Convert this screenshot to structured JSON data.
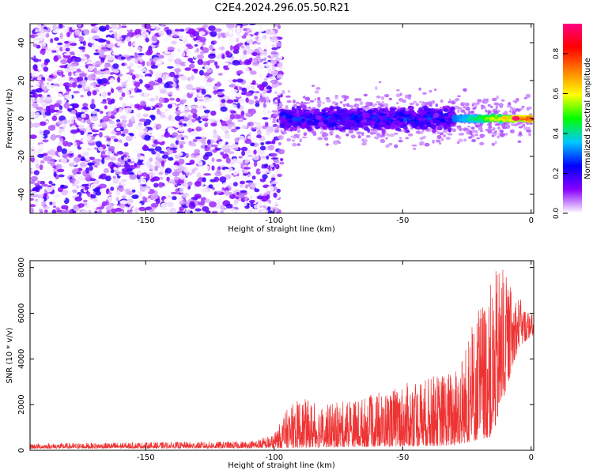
{
  "title": "C2E4.2024.296.05.50.R21",
  "chart_data": [
    {
      "type": "heatmap",
      "xlabel": "Height of straight line (km)",
      "ylabel": "Frequency (Hz)",
      "xlim": [
        -195,
        1
      ],
      "ylim": [
        -50,
        50
      ],
      "xticks": [
        -150,
        -100,
        -50,
        0
      ],
      "yticks": [
        -40,
        -20,
        0,
        20,
        40
      ],
      "colorbar": {
        "label": "Normalized spectral amplitude",
        "range": [
          0,
          0.95
        ],
        "ticks": [
          0.0,
          0.2,
          0.4,
          0.6,
          0.8
        ],
        "colors": [
          "#ffffff",
          "#8a00ff",
          "#0000ff",
          "#00c8ff",
          "#00ff00",
          "#ffff00",
          "#ff8000",
          "#ff0000",
          "#ff0080"
        ]
      },
      "regions": [
        {
          "x_range": [
            -195,
            -97
          ],
          "freq_range": [
            -50,
            50
          ],
          "amplitude": [
            0.0,
            0.15
          ]
        },
        {
          "x_range": [
            -97,
            -30
          ],
          "freq_range": [
            -10,
            10
          ],
          "amplitude": [
            0.1,
            0.3
          ]
        },
        {
          "x_range": [
            -30,
            0
          ],
          "freq_range": [
            -4,
            4
          ],
          "amplitude": [
            0.3,
            0.95
          ]
        }
      ],
      "peak": {
        "x": -6,
        "freq": 0,
        "amplitude": 0.95
      }
    },
    {
      "type": "line",
      "xlabel": "Height of straight line (km)",
      "ylabel": "SNR (10 * v/v)",
      "xlim": [
        -195,
        1
      ],
      "ylim": [
        0,
        8300
      ],
      "xticks": [
        -150,
        -100,
        -50,
        0
      ],
      "yticks": [
        0,
        2000,
        4000,
        6000,
        8000
      ],
      "color": "#ee3333",
      "envelope": [
        {
          "x": -195,
          "y": 300
        },
        {
          "x": -110,
          "y": 400
        },
        {
          "x": -100,
          "y": 700
        },
        {
          "x": -95,
          "y": 1800
        },
        {
          "x": -90,
          "y": 2300
        },
        {
          "x": -80,
          "y": 2000
        },
        {
          "x": -70,
          "y": 2200
        },
        {
          "x": -60,
          "y": 2500
        },
        {
          "x": -50,
          "y": 2900
        },
        {
          "x": -40,
          "y": 3200
        },
        {
          "x": -30,
          "y": 3600
        },
        {
          "x": -25,
          "y": 4800
        },
        {
          "x": -20,
          "y": 6500
        },
        {
          "x": -15,
          "y": 7500
        },
        {
          "x": -12,
          "y": 8300
        },
        {
          "x": -8,
          "y": 7200
        },
        {
          "x": -5,
          "y": 6800
        },
        {
          "x": -2,
          "y": 6200
        },
        {
          "x": 0,
          "y": 6000
        }
      ],
      "baseline": [
        {
          "x": -195,
          "y": 80
        },
        {
          "x": -100,
          "y": 100
        },
        {
          "x": -30,
          "y": 200
        },
        {
          "x": -15,
          "y": 600
        },
        {
          "x": -5,
          "y": 4500
        },
        {
          "x": 0,
          "y": 5000
        }
      ]
    }
  ]
}
